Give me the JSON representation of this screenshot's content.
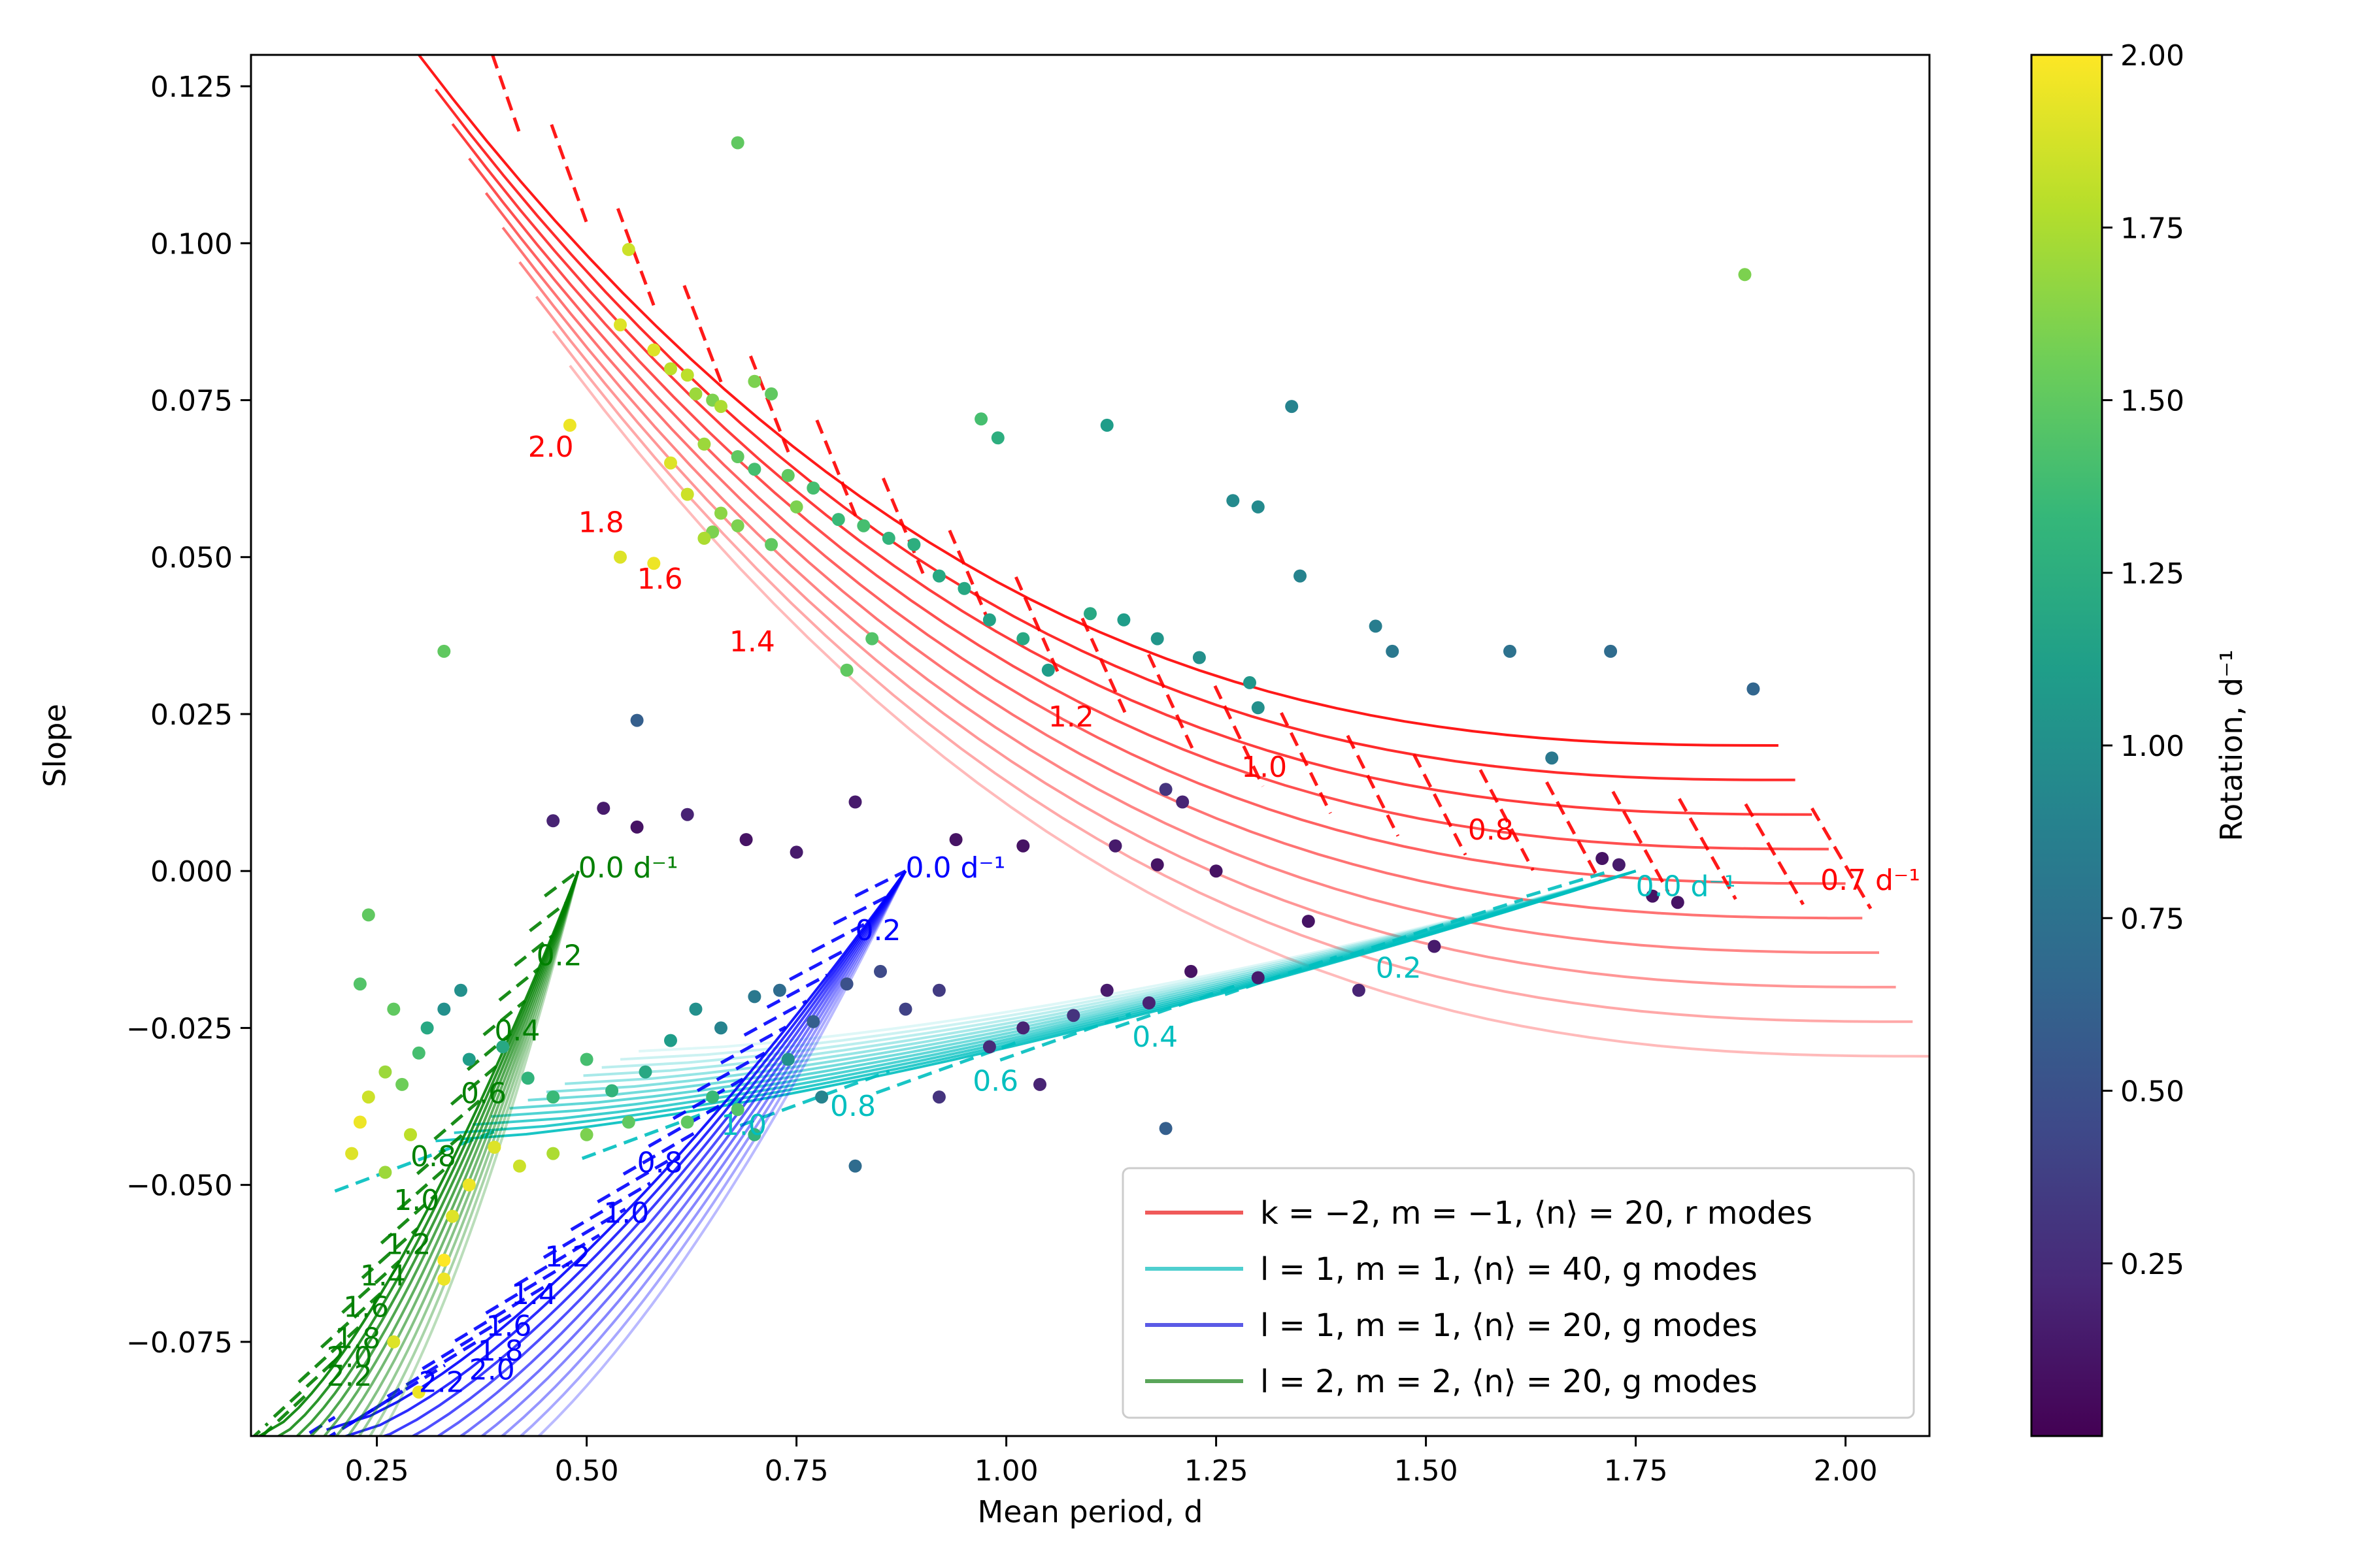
{
  "chart_data": {
    "type": "scatter",
    "xlabel": "Mean period, d",
    "ylabel": "Slope",
    "xlim": [
      0.1,
      2.1
    ],
    "ylim": [
      -0.09,
      0.13
    ],
    "xticks": [
      "0.25",
      "0.50",
      "0.75",
      "1.00",
      "1.25",
      "1.50",
      "1.75",
      "2.00"
    ],
    "xtick_values": [
      0.25,
      0.5,
      0.75,
      1.0,
      1.25,
      1.5,
      1.75,
      2.0
    ],
    "yticks": [
      "−0.075",
      "−0.050",
      "−0.025",
      "0.000",
      "0.025",
      "0.050",
      "0.075",
      "0.100",
      "0.125"
    ],
    "ytick_values": [
      -0.075,
      -0.05,
      -0.025,
      0.0,
      0.025,
      0.05,
      0.075,
      0.1,
      0.125
    ],
    "colorbar": {
      "label": "Rotation, d⁻¹",
      "range": [
        0.0,
        2.0
      ],
      "ticks": [
        "0.25",
        "0.50",
        "0.75",
        "1.00",
        "1.25",
        "1.50",
        "1.75",
        "2.00"
      ],
      "tick_values": [
        0.25,
        0.5,
        0.75,
        1.0,
        1.25,
        1.5,
        1.75,
        2.0
      ],
      "colors": [
        "#440154",
        "#482878",
        "#3e4989",
        "#31688e",
        "#26828e",
        "#1f9e89",
        "#35b779",
        "#6ece58",
        "#b5de2b",
        "#fde725"
      ]
    },
    "legend": {
      "position": "lower-right",
      "entries": [
        {
          "label": "k = −2, m = −1, ⟨n⟩ = 20, r modes",
          "color": "#f05a5a"
        },
        {
          "label": "l = 1, m = 1, ⟨n⟩ = 40, g modes",
          "color": "#4fcfcf"
        },
        {
          "label": "l = 1, m = 1, ⟨n⟩ = 20, g modes",
          "color": "#5a5ae6"
        },
        {
          "label": "l = 2, m = 2, ⟨n⟩ = 20, g modes",
          "color": "#5aa55a"
        }
      ]
    },
    "families": [
      {
        "name": "r modes",
        "color": "#ff0000",
        "shape": "convex",
        "curve_start": [
          0.3,
          0.13
        ],
        "curve_end": [
          1.92,
          0.02
        ],
        "curve_shift": [
          0.02,
          -0.0055
        ],
        "n_curves": 10,
        "dashed_start": [
          0.3,
          0.13
        ],
        "dashed_end": [
          1.96,
          0.004
        ],
        "n_dashed": 22,
        "dash_dy": -0.016,
        "labels": [
          {
            "text": "2.0",
            "x": 0.43,
            "y": 0.066
          },
          {
            "text": "1.8",
            "x": 0.49,
            "y": 0.054
          },
          {
            "text": "1.6",
            "x": 0.56,
            "y": 0.045
          },
          {
            "text": "1.4",
            "x": 0.67,
            "y": 0.035
          },
          {
            "text": "1.2",
            "x": 1.05,
            "y": 0.023
          },
          {
            "text": "1.0",
            "x": 1.28,
            "y": 0.015
          },
          {
            "text": "0.8",
            "x": 1.55,
            "y": 0.005
          },
          {
            "text": "0.7 d⁻¹",
            "x": 1.97,
            "y": -0.003
          }
        ]
      },
      {
        "name": "g modes l=1 n=40",
        "color": "#00bfbf",
        "curve_start": [
          0.32,
          -0.043
        ],
        "curve_end": [
          1.75,
          0.0
        ],
        "curve_shift": [
          0.022,
          0.0013
        ],
        "n_curves": 12,
        "dashed_start": [
          0.4,
          -0.041
        ],
        "dashed_end": [
          1.72,
          0.0
        ],
        "n_dashed": 10,
        "dash_dx": -0.2,
        "labels": [
          {
            "text": "0.0 d⁻¹",
            "x": 1.75,
            "y": -0.004
          },
          {
            "text": "0.2",
            "x": 1.44,
            "y": -0.017
          },
          {
            "text": "0.4",
            "x": 1.15,
            "y": -0.028
          },
          {
            "text": "0.6",
            "x": 0.96,
            "y": -0.035
          },
          {
            "text": "0.8",
            "x": 0.79,
            "y": -0.039
          },
          {
            "text": "1.0",
            "x": 0.66,
            "y": -0.042
          }
        ]
      },
      {
        "name": "g modes l=1 n=20",
        "color": "#0000ff",
        "curve_start": [
          0.19,
          -0.089
        ],
        "curve_end": [
          0.88,
          0.0
        ],
        "curve_shift": [
          0.012,
          -0.0015
        ],
        "n_curves": 10,
        "dashed_start": [
          0.2,
          -0.087
        ],
        "dashed_end": [
          0.88,
          0.0
        ],
        "n_dashed": 22,
        "dash_dx": -0.12,
        "labels": [
          {
            "text": "0.0 d⁻¹",
            "x": 0.88,
            "y": -0.001
          },
          {
            "text": "0.2",
            "x": 0.82,
            "y": -0.011
          },
          {
            "text": "0.8",
            "x": 0.56,
            "y": -0.048
          },
          {
            "text": "1.0",
            "x": 0.52,
            "y": -0.056
          },
          {
            "text": "1.2",
            "x": 0.45,
            "y": -0.063
          },
          {
            "text": "1.4",
            "x": 0.41,
            "y": -0.069
          },
          {
            "text": "1.6",
            "x": 0.38,
            "y": -0.074
          },
          {
            "text": "1.8",
            "x": 0.37,
            "y": -0.078
          },
          {
            "text": "2.0",
            "x": 0.36,
            "y": -0.081
          },
          {
            "text": "2.2",
            "x": 0.3,
            "y": -0.083
          }
        ]
      },
      {
        "name": "g modes l=2 n=20",
        "color": "#008000",
        "curve_start": [
          0.11,
          -0.09
        ],
        "curve_end": [
          0.49,
          0.0
        ],
        "curve_shift": [
          0.008,
          -0.0012
        ],
        "n_curves": 10,
        "dashed_start": [
          0.12,
          -0.088
        ],
        "dashed_end": [
          0.49,
          0.0
        ],
        "n_dashed": 18,
        "dash_dx": -0.08,
        "labels": [
          {
            "text": "0.0 d⁻¹",
            "x": 0.49,
            "y": -0.001
          },
          {
            "text": "0.2",
            "x": 0.44,
            "y": -0.015
          },
          {
            "text": "0.4",
            "x": 0.39,
            "y": -0.027
          },
          {
            "text": "0.6",
            "x": 0.35,
            "y": -0.037
          },
          {
            "text": "0.8",
            "x": 0.29,
            "y": -0.047
          },
          {
            "text": "1.0",
            "x": 0.27,
            "y": -0.054
          },
          {
            "text": "1.2",
            "x": 0.26,
            "y": -0.061
          },
          {
            "text": "1.4",
            "x": 0.23,
            "y": -0.066
          },
          {
            "text": "1.6",
            "x": 0.21,
            "y": -0.071
          },
          {
            "text": "1.8",
            "x": 0.2,
            "y": -0.076
          },
          {
            "text": "2.0",
            "x": 0.19,
            "y": -0.079
          },
          {
            "text": "2.2",
            "x": 0.19,
            "y": -0.082
          }
        ]
      }
    ],
    "scatter_points": [
      [
        0.68,
        0.116,
        1.5
      ],
      [
        1.88,
        0.095,
        1.6
      ],
      [
        0.55,
        0.099,
        1.85
      ],
      [
        0.54,
        0.087,
        1.9
      ],
      [
        0.58,
        0.083,
        1.9
      ],
      [
        0.6,
        0.08,
        1.8
      ],
      [
        0.62,
        0.079,
        1.8
      ],
      [
        0.63,
        0.076,
        1.7
      ],
      [
        0.65,
        0.075,
        1.6
      ],
      [
        0.66,
        0.074,
        1.75
      ],
      [
        0.7,
        0.078,
        1.6
      ],
      [
        0.72,
        0.076,
        1.5
      ],
      [
        0.48,
        0.071,
        1.95
      ],
      [
        0.6,
        0.065,
        1.9
      ],
      [
        0.64,
        0.068,
        1.7
      ],
      [
        0.68,
        0.066,
        1.5
      ],
      [
        0.7,
        0.064,
        1.4
      ],
      [
        0.74,
        0.063,
        1.5
      ],
      [
        0.77,
        0.061,
        1.4
      ],
      [
        0.62,
        0.06,
        1.85
      ],
      [
        0.65,
        0.054,
        1.6
      ],
      [
        0.68,
        0.055,
        1.6
      ],
      [
        0.72,
        0.052,
        1.5
      ],
      [
        0.75,
        0.058,
        1.6
      ],
      [
        0.8,
        0.056,
        1.35
      ],
      [
        0.83,
        0.055,
        1.4
      ],
      [
        0.86,
        0.053,
        1.3
      ],
      [
        0.89,
        0.052,
        1.25
      ],
      [
        0.92,
        0.047,
        1.2
      ],
      [
        0.95,
        0.045,
        1.2
      ],
      [
        0.98,
        0.04,
        1.15
      ],
      [
        1.02,
        0.037,
        1.2
      ],
      [
        1.05,
        0.032,
        1.1
      ],
      [
        0.99,
        0.069,
        1.25
      ],
      [
        0.97,
        0.072,
        1.4
      ],
      [
        1.12,
        0.071,
        1.1
      ],
      [
        1.34,
        0.074,
        0.9
      ],
      [
        1.27,
        0.059,
        0.95
      ],
      [
        1.3,
        0.058,
        0.95
      ],
      [
        1.35,
        0.047,
        0.9
      ],
      [
        1.44,
        0.039,
        0.85
      ],
      [
        1.46,
        0.035,
        0.8
      ],
      [
        1.6,
        0.035,
        0.75
      ],
      [
        1.72,
        0.035,
        0.7
      ],
      [
        1.89,
        0.029,
        0.65
      ],
      [
        1.65,
        0.018,
        0.8
      ],
      [
        1.29,
        0.03,
        1.05
      ],
      [
        1.3,
        0.026,
        1.0
      ],
      [
        1.1,
        0.041,
        1.2
      ],
      [
        1.14,
        0.04,
        1.1
      ],
      [
        1.18,
        0.037,
        1.05
      ],
      [
        1.23,
        0.034,
        1.0
      ],
      [
        0.54,
        0.05,
        1.9
      ],
      [
        0.58,
        0.049,
        1.95
      ],
      [
        0.64,
        0.053,
        1.75
      ],
      [
        0.66,
        0.057,
        1.65
      ],
      [
        0.33,
        0.035,
        1.5
      ],
      [
        0.56,
        0.024,
        0.6
      ],
      [
        0.81,
        0.032,
        1.5
      ],
      [
        0.84,
        0.037,
        1.45
      ],
      [
        1.19,
        0.013,
        0.3
      ],
      [
        1.21,
        0.011,
        0.2
      ],
      [
        0.82,
        0.011,
        0.15
      ],
      [
        0.62,
        0.009,
        0.2
      ],
      [
        0.46,
        0.008,
        0.2
      ],
      [
        0.52,
        0.01,
        0.15
      ],
      [
        0.56,
        0.007,
        0.1
      ],
      [
        0.69,
        0.005,
        0.1
      ],
      [
        0.75,
        0.003,
        0.15
      ],
      [
        0.94,
        0.005,
        0.1
      ],
      [
        1.02,
        0.004,
        0.1
      ],
      [
        1.13,
        0.004,
        0.15
      ],
      [
        1.18,
        0.001,
        0.1
      ],
      [
        1.25,
        0.0,
        0.1
      ],
      [
        1.71,
        0.002,
        0.1
      ],
      [
        1.73,
        0.001,
        0.15
      ],
      [
        1.77,
        -0.004,
        0.1
      ],
      [
        1.8,
        -0.005,
        0.1
      ],
      [
        1.51,
        -0.012,
        0.15
      ],
      [
        1.42,
        -0.019,
        0.2
      ],
      [
        1.36,
        -0.008,
        0.1
      ],
      [
        1.19,
        -0.041,
        0.6
      ],
      [
        1.04,
        -0.034,
        0.2
      ],
      [
        0.92,
        -0.036,
        0.3
      ],
      [
        0.82,
        -0.047,
        0.7
      ],
      [
        0.98,
        -0.028,
        0.25
      ],
      [
        1.02,
        -0.025,
        0.2
      ],
      [
        1.08,
        -0.023,
        0.3
      ],
      [
        1.12,
        -0.019,
        0.15
      ],
      [
        1.17,
        -0.021,
        0.2
      ],
      [
        1.22,
        -0.016,
        0.1
      ],
      [
        1.3,
        -0.017,
        0.15
      ],
      [
        0.36,
        -0.03,
        1.1
      ],
      [
        0.4,
        -0.028,
        1.2
      ],
      [
        0.43,
        -0.033,
        1.3
      ],
      [
        0.46,
        -0.036,
        1.35
      ],
      [
        0.5,
        -0.03,
        1.4
      ],
      [
        0.53,
        -0.035,
        1.3
      ],
      [
        0.57,
        -0.032,
        1.2
      ],
      [
        0.6,
        -0.027,
        1.1
      ],
      [
        0.63,
        -0.022,
        1.0
      ],
      [
        0.66,
        -0.025,
        0.9
      ],
      [
        0.7,
        -0.02,
        0.8
      ],
      [
        0.73,
        -0.019,
        0.7
      ],
      [
        0.77,
        -0.024,
        0.6
      ],
      [
        0.81,
        -0.018,
        0.5
      ],
      [
        0.85,
        -0.016,
        0.45
      ],
      [
        0.88,
        -0.022,
        0.4
      ],
      [
        0.92,
        -0.019,
        0.35
      ],
      [
        0.65,
        -0.036,
        1.35
      ],
      [
        0.68,
        -0.038,
        1.45
      ],
      [
        0.55,
        -0.04,
        1.5
      ],
      [
        0.5,
        -0.042,
        1.6
      ],
      [
        0.46,
        -0.045,
        1.75
      ],
      [
        0.42,
        -0.047,
        1.85
      ],
      [
        0.39,
        -0.044,
        1.9
      ],
      [
        0.36,
        -0.05,
        1.95
      ],
      [
        0.34,
        -0.055,
        1.9
      ],
      [
        0.33,
        -0.062,
        2.0
      ],
      [
        0.33,
        -0.065,
        1.95
      ],
      [
        0.27,
        -0.075,
        1.9
      ],
      [
        0.3,
        -0.083,
        1.95
      ],
      [
        0.22,
        -0.045,
        1.9
      ],
      [
        0.23,
        -0.04,
        1.95
      ],
      [
        0.24,
        -0.036,
        1.85
      ],
      [
        0.26,
        -0.032,
        1.7
      ],
      [
        0.28,
        -0.034,
        1.55
      ],
      [
        0.3,
        -0.029,
        1.4
      ],
      [
        0.31,
        -0.025,
        1.2
      ],
      [
        0.33,
        -0.022,
        1.0
      ],
      [
        0.35,
        -0.019,
        1.0
      ],
      [
        0.27,
        -0.022,
        1.5
      ],
      [
        0.23,
        -0.018,
        1.45
      ],
      [
        0.24,
        -0.007,
        1.5
      ],
      [
        0.29,
        -0.042,
        1.8
      ],
      [
        0.26,
        -0.048,
        1.7
      ],
      [
        0.62,
        -0.04,
        1.5
      ],
      [
        0.7,
        -0.042,
        1.3
      ],
      [
        0.74,
        -0.03,
        1.0
      ],
      [
        0.78,
        -0.036,
        0.9
      ]
    ]
  }
}
